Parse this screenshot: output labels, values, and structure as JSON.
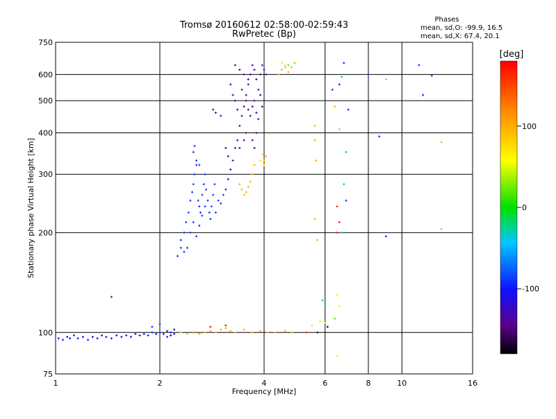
{
  "chart_data": {
    "type": "scatter",
    "title": "Tromsø 20160612 02:58:00-02:59:43",
    "subtitle": "RwPretec (Bp)",
    "xlabel": "Frequency [MHz]",
    "ylabel": "Stationary phase Virtual Height [km]",
    "x_scale": "log",
    "y_scale": "log",
    "xlim": [
      1,
      16
    ],
    "ylim": [
      75,
      750
    ],
    "x_ticks": [
      "1",
      "2",
      "4",
      "6",
      "8",
      "10",
      "16"
    ],
    "x_tick_values": [
      1,
      2,
      4,
      6,
      8,
      10,
      16
    ],
    "y_ticks": [
      "75",
      "100",
      "200",
      "300",
      "400",
      "500",
      "600",
      "750"
    ],
    "y_tick_values": [
      75,
      100,
      200,
      300,
      400,
      500,
      600,
      750
    ],
    "grid": true,
    "stats_title": "Phases",
    "stats_lines": [
      "mean, sd,O: -99.9, 16.5",
      "mean, sd,X:  67.4, 20.1"
    ],
    "colorbar": {
      "label": "[deg]",
      "range": [
        -180,
        180
      ],
      "ticks": [
        "100",
        "0",
        "-100"
      ],
      "tick_values": [
        100,
        0,
        -100
      ]
    },
    "clusters": [
      {
        "phase": -100,
        "points": [
          [
            1.02,
            96
          ],
          [
            1.05,
            95
          ],
          [
            1.08,
            97
          ],
          [
            1.1,
            96
          ],
          [
            1.13,
            98
          ],
          [
            1.16,
            96
          ],
          [
            1.2,
            97
          ],
          [
            1.24,
            95
          ],
          [
            1.28,
            97
          ],
          [
            1.32,
            96
          ],
          [
            1.36,
            98
          ],
          [
            1.4,
            97
          ],
          [
            1.45,
            96
          ],
          [
            1.5,
            98
          ],
          [
            1.55,
            97
          ],
          [
            1.6,
            98
          ],
          [
            1.65,
            97
          ],
          [
            1.7,
            99
          ],
          [
            1.75,
            98
          ],
          [
            1.8,
            99
          ],
          [
            1.85,
            98
          ],
          [
            1.9,
            100
          ],
          [
            1.95,
            99
          ],
          [
            2.0,
            100
          ],
          [
            2.05,
            99
          ],
          [
            2.1,
            101
          ],
          [
            2.15,
            100
          ],
          [
            2.2,
            99
          ],
          [
            2.3,
            100
          ],
          [
            2.4,
            99
          ],
          [
            2.5,
            100
          ]
        ]
      },
      {
        "phase": -90,
        "points": [
          [
            2.25,
            170
          ],
          [
            2.3,
            190
          ],
          [
            2.35,
            200
          ],
          [
            2.38,
            215
          ],
          [
            2.42,
            230
          ],
          [
            2.45,
            250
          ],
          [
            2.48,
            265
          ],
          [
            2.5,
            280
          ],
          [
            2.52,
            300
          ],
          [
            2.55,
            320
          ],
          [
            2.58,
            250
          ],
          [
            2.6,
            240
          ],
          [
            2.62,
            230
          ],
          [
            2.65,
            260
          ],
          [
            2.68,
            280
          ],
          [
            2.7,
            300
          ],
          [
            2.72,
            270
          ],
          [
            2.75,
            250
          ],
          [
            2.78,
            230
          ],
          [
            2.8,
            220
          ],
          [
            2.82,
            240
          ],
          [
            2.85,
            260
          ],
          [
            2.88,
            280
          ],
          [
            2.9,
            230
          ],
          [
            2.95,
            250
          ],
          [
            3.0,
            245
          ],
          [
            3.05,
            260
          ],
          [
            2.4,
            180
          ],
          [
            2.45,
            200
          ],
          [
            2.5,
            215
          ],
          [
            2.55,
            195
          ],
          [
            2.6,
            210
          ],
          [
            2.65,
            225
          ],
          [
            2.7,
            240
          ],
          [
            2.35,
            175
          ],
          [
            2.3,
            180
          ],
          [
            2.5,
            350
          ],
          [
            2.52,
            365
          ],
          [
            2.55,
            330
          ],
          [
            2.6,
            320
          ]
        ]
      },
      {
        "phase": -130,
        "points": [
          [
            3.1,
            270
          ],
          [
            3.15,
            290
          ],
          [
            3.2,
            310
          ],
          [
            3.25,
            330
          ],
          [
            3.3,
            360
          ],
          [
            3.35,
            380
          ],
          [
            3.4,
            420
          ],
          [
            3.45,
            450
          ],
          [
            3.5,
            480
          ],
          [
            3.55,
            520
          ],
          [
            3.6,
            560
          ],
          [
            3.65,
            600
          ],
          [
            3.7,
            640
          ],
          [
            3.75,
            620
          ],
          [
            3.8,
            580
          ],
          [
            3.85,
            540
          ],
          [
            3.9,
            600
          ],
          [
            3.95,
            640
          ],
          [
            4.0,
            620
          ],
          [
            4.05,
            600
          ],
          [
            3.3,
            640
          ],
          [
            3.4,
            620
          ],
          [
            3.5,
            600
          ],
          [
            3.6,
            580
          ],
          [
            3.2,
            560
          ],
          [
            3.25,
            520
          ],
          [
            3.3,
            500
          ],
          [
            3.35,
            470
          ],
          [
            3.45,
            540
          ],
          [
            3.55,
            500
          ],
          [
            2.85,
            470
          ],
          [
            2.9,
            460
          ],
          [
            3.0,
            450
          ],
          [
            3.1,
            360
          ],
          [
            3.15,
            340
          ]
        ]
      },
      {
        "phase": -140,
        "points": [
          [
            3.6,
            470
          ],
          [
            3.65,
            450
          ],
          [
            3.7,
            480
          ],
          [
            3.75,
            500
          ],
          [
            3.8,
            460
          ],
          [
            3.85,
            440
          ],
          [
            3.9,
            520
          ],
          [
            3.95,
            480
          ],
          [
            3.7,
            380
          ],
          [
            3.75,
            360
          ],
          [
            3.8,
            400
          ],
          [
            3.5,
            380
          ],
          [
            3.55,
            400
          ],
          [
            3.4,
            360
          ]
        ]
      },
      {
        "phase": 100,
        "points": [
          [
            2.5,
            100
          ],
          [
            2.6,
            99
          ],
          [
            2.7,
            100
          ],
          [
            2.8,
            101
          ],
          [
            2.9,
            100
          ],
          [
            3.0,
            102
          ],
          [
            3.1,
            103
          ],
          [
            3.2,
            101
          ],
          [
            3.3,
            100
          ],
          [
            3.5,
            102
          ],
          [
            3.7,
            100
          ],
          [
            3.9,
            101
          ],
          [
            4.1,
            100
          ],
          [
            4.3,
            100
          ],
          [
            4.6,
            101
          ],
          [
            4.8,
            100
          ],
          [
            3.4,
            280
          ],
          [
            3.45,
            270
          ],
          [
            3.5,
            260
          ],
          [
            3.55,
            265
          ],
          [
            3.6,
            275
          ],
          [
            3.65,
            285
          ],
          [
            3.7,
            300
          ],
          [
            3.75,
            320
          ],
          [
            4.0,
            330
          ],
          [
            4.05,
            340
          ],
          [
            4.4,
            600
          ],
          [
            4.5,
            620
          ],
          [
            4.6,
            630
          ],
          [
            4.7,
            610
          ],
          [
            4.8,
            630
          ],
          [
            5.6,
            420
          ],
          [
            5.6,
            380
          ],
          [
            5.65,
            330
          ],
          [
            5.6,
            220
          ],
          [
            5.7,
            190
          ],
          [
            6.4,
            480
          ],
          [
            6.6,
            410
          ],
          [
            9.0,
            580
          ],
          [
            13.0,
            375
          ],
          [
            13.0,
            205
          ]
        ]
      },
      {
        "phase": 70,
        "points": [
          [
            3.9,
            330
          ],
          [
            3.95,
            345
          ],
          [
            4.0,
            320
          ],
          [
            5.8,
            108
          ],
          [
            6.0,
            107
          ],
          [
            5.5,
            105
          ],
          [
            6.5,
            130
          ],
          [
            6.6,
            120
          ],
          [
            2.3,
            100
          ],
          [
            2.4,
            99
          ]
        ]
      },
      {
        "phase": 50,
        "points": [
          [
            4.5,
            650
          ],
          [
            4.6,
            640
          ],
          [
            6.5,
            85
          ]
        ]
      },
      {
        "phase": 20,
        "points": [
          [
            4.7,
            640
          ],
          [
            4.9,
            650
          ],
          [
            6.4,
            110
          ]
        ]
      },
      {
        "phase": -20,
        "points": [
          [
            5.9,
            125
          ],
          [
            6.0,
            120
          ],
          [
            6.7,
            200
          ],
          [
            6.8,
            280
          ],
          [
            6.7,
            590
          ],
          [
            6.9,
            350
          ]
        ]
      },
      {
        "phase": 170,
        "points": [
          [
            6.5,
            240
          ],
          [
            6.6,
            215
          ],
          [
            6.5,
            200
          ],
          [
            5.3,
            100
          ],
          [
            2.8,
            104
          ],
          [
            3.1,
            105
          ]
        ]
      },
      {
        "phase": -95,
        "points": [
          [
            1.45,
            128
          ],
          [
            1.9,
            104
          ],
          [
            2.0,
            106
          ],
          [
            2.1,
            97
          ],
          [
            6.9,
            250
          ],
          [
            7.0,
            470
          ],
          [
            8.0,
            600
          ],
          [
            8.6,
            390
          ],
          [
            9.0,
            195
          ],
          [
            11.2,
            640
          ],
          [
            11.5,
            520
          ],
          [
            12.2,
            595
          ],
          [
            6.8,
            650
          ],
          [
            6.6,
            560
          ],
          [
            6.3,
            540
          ]
        ]
      },
      {
        "phase": -160,
        "points": [
          [
            5.7,
            100
          ],
          [
            6.1,
            104
          ],
          [
            2.15,
            98
          ],
          [
            2.2,
            102
          ]
        ]
      }
    ]
  }
}
